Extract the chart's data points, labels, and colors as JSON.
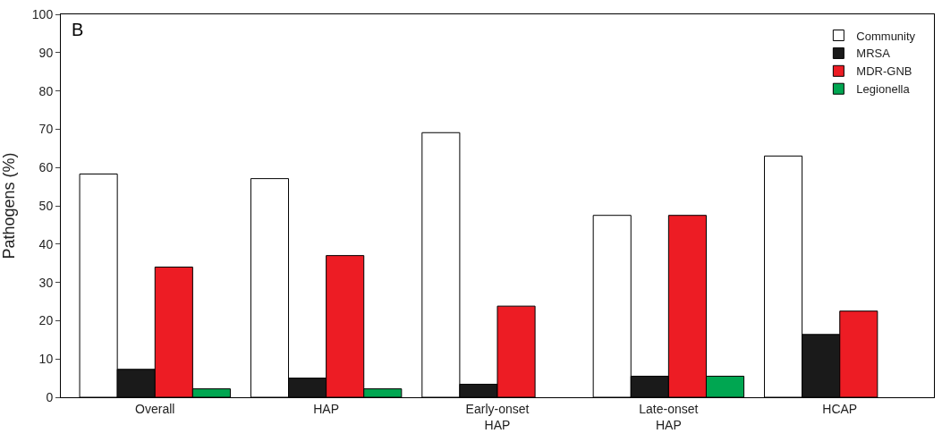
{
  "chart_data": {
    "type": "bar",
    "ylabel": "Pathogens (%)",
    "annotations": [
      "B"
    ],
    "categories": [
      "Overall",
      "HAP",
      "Early-onset HAP",
      "Late-onset HAP",
      "HCAP"
    ],
    "series": [
      {
        "name": "Community",
        "color": "#ffffff",
        "values": [
          58.3,
          57.1,
          69.1,
          47.5,
          63.0
        ]
      },
      {
        "name": "MRSA",
        "color": "#1a1a1a",
        "values": [
          7.3,
          5.0,
          3.4,
          5.5,
          16.4
        ]
      },
      {
        "name": "MDR-GNB",
        "color": "#ed1c24",
        "values": [
          34.0,
          37.0,
          23.8,
          47.5,
          22.5
        ]
      },
      {
        "name": "Legionella",
        "color": "#00a651",
        "values": [
          2.2,
          2.2,
          null,
          5.5,
          null
        ]
      }
    ],
    "ylim": [
      0,
      100
    ],
    "yticks": [
      0,
      10,
      20,
      30,
      40,
      50,
      60,
      70,
      80,
      90,
      100
    ],
    "legend": "top right"
  }
}
